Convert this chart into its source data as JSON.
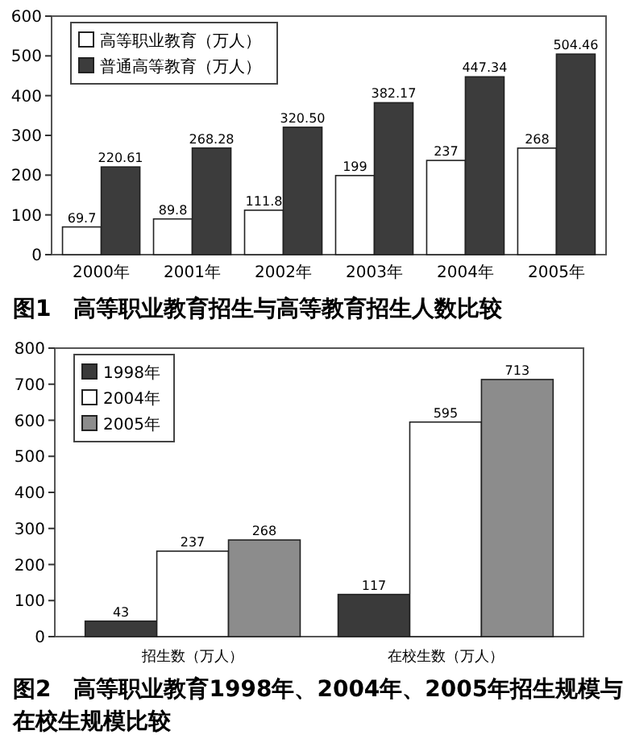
{
  "chart_data": [
    {
      "type": "bar",
      "title": "图1　高等职业教育招生与高等教育招生人数比较",
      "categories": [
        "2000年",
        "2001年",
        "2002年",
        "2003年",
        "2004年",
        "2005年"
      ],
      "series": [
        {
          "name": "高等职业教育（万人）",
          "color": "#ffffff",
          "values": [
            69.7,
            89.8,
            111.8,
            199,
            237,
            268
          ],
          "value_labels": [
            "69.7",
            "89.8",
            "111.8",
            "199",
            "237",
            "268"
          ]
        },
        {
          "name": "普通高等教育（万人）",
          "color": "#3c3c3c",
          "values": [
            220.61,
            268.28,
            320.5,
            382.17,
            447.34,
            504.46
          ],
          "value_labels": [
            "220.61",
            "268.28",
            "320.50",
            "382.17",
            "447.34",
            "504.46"
          ]
        }
      ],
      "ylim": [
        0,
        600
      ],
      "yticks": [
        0,
        100,
        200,
        300,
        400,
        500,
        600
      ],
      "legend": "top left",
      "grid": false
    },
    {
      "type": "bar",
      "title": "图2　高等职业教育1998年、2004年、2005年招生规模与在校生规模比较",
      "categories": [
        "招生数（万人）",
        "在校生数（万人）"
      ],
      "series": [
        {
          "name": "1998年",
          "color": "#3a3a3a",
          "values": [
            43,
            117
          ]
        },
        {
          "name": "2004年",
          "color": "#ffffff",
          "values": [
            237,
            595
          ]
        },
        {
          "name": "2005年",
          "color": "#8c8c8c",
          "values": [
            268,
            713
          ]
        }
      ],
      "ylim": [
        0,
        800
      ],
      "yticks": [
        0,
        100,
        200,
        300,
        400,
        500,
        600,
        700,
        800
      ],
      "legend": "top left",
      "grid": false,
      "data_labels": true
    }
  ]
}
